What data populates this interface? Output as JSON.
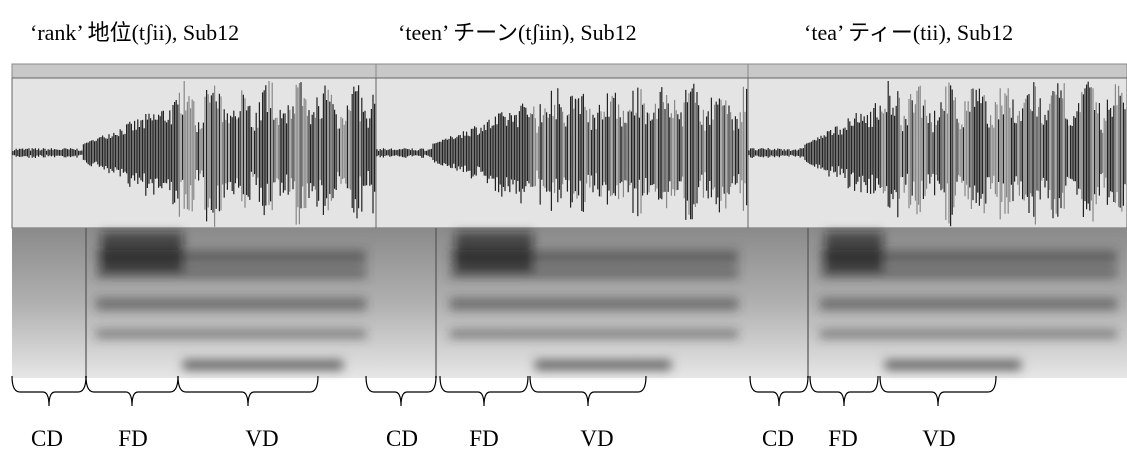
{
  "panels": [
    {
      "title": "‘rank’ 地位(tʃii), Sub12",
      "segments": [
        "CD",
        "FD",
        "VD"
      ]
    },
    {
      "title": "‘teen’ チーン(tʃiin), Sub12",
      "segments": [
        "CD",
        "FD",
        "VD"
      ]
    },
    {
      "title": "‘tea’ ティー(tii), Sub12",
      "segments": [
        "CD",
        "FD",
        "VD"
      ]
    }
  ]
}
